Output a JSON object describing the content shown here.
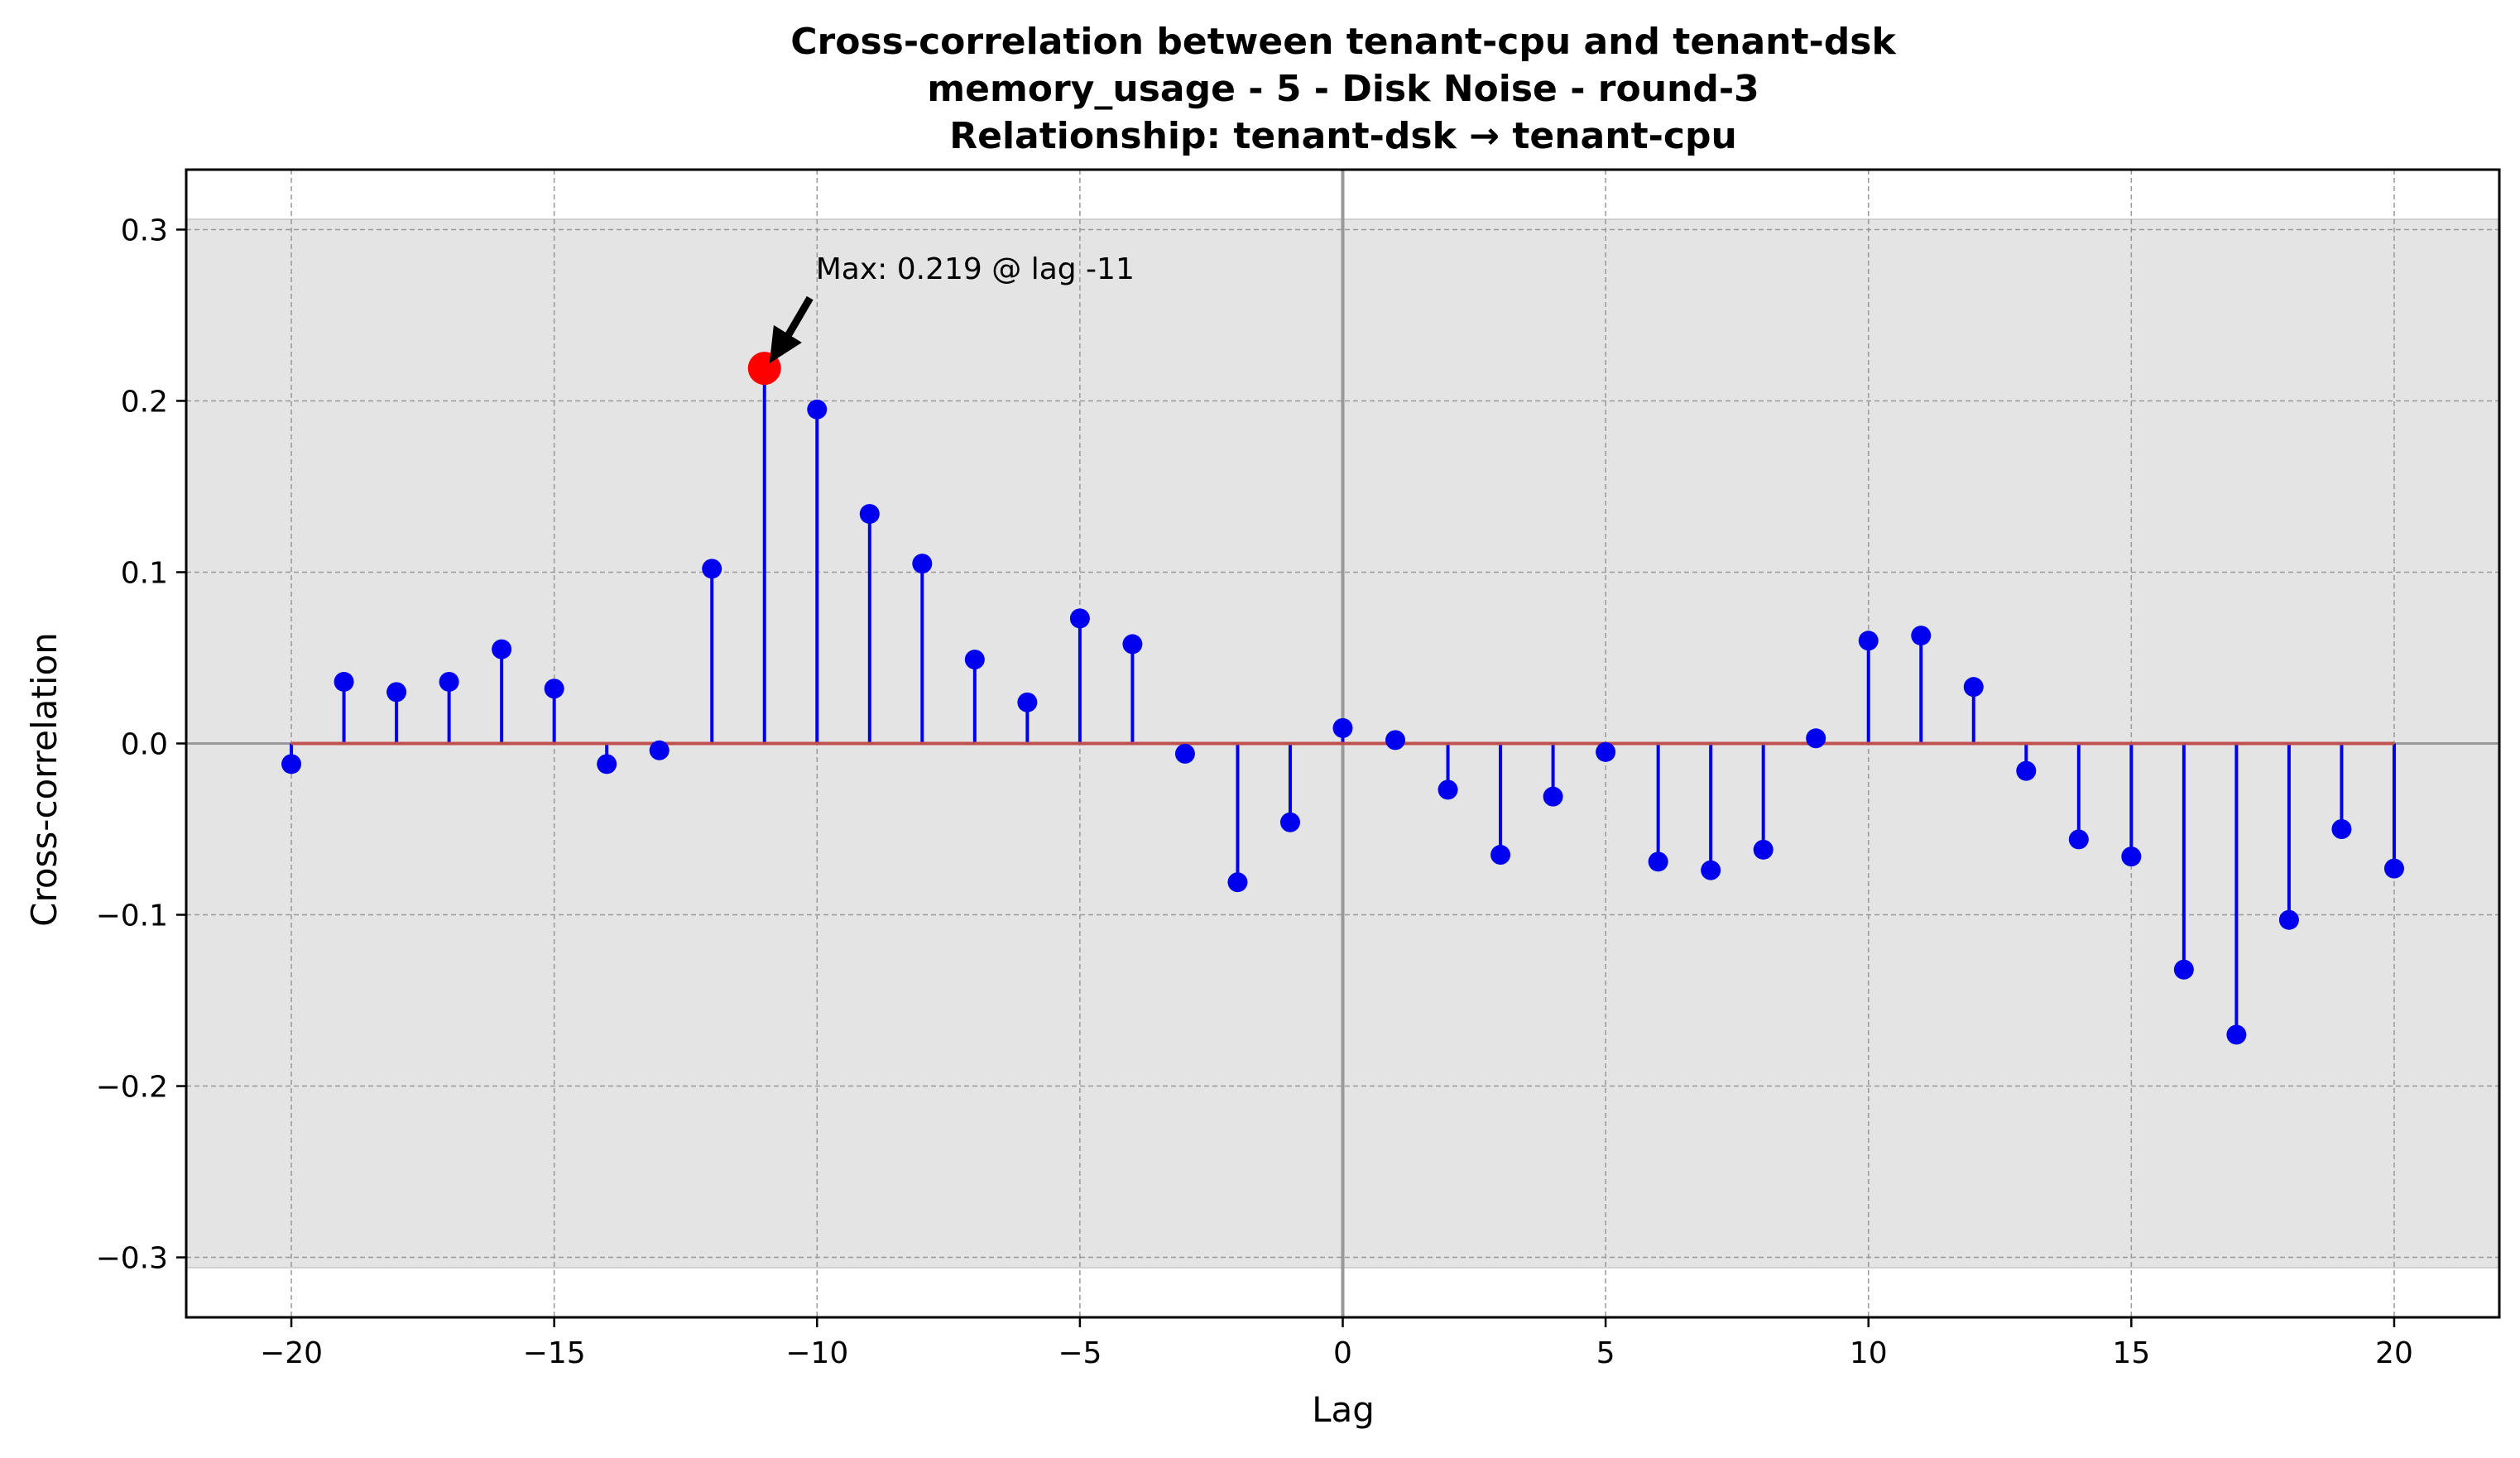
{
  "chart_data": {
    "type": "stem",
    "title_lines": [
      "Cross-correlation between tenant-cpu and tenant-dsk",
      "memory_usage - 5 - Disk Noise - round-3",
      "Relationship: tenant-dsk → tenant-cpu"
    ],
    "xlabel": "Lag",
    "ylabel": "Cross-correlation",
    "xlim": [
      -22,
      22
    ],
    "ylim": [
      -0.335,
      0.335
    ],
    "x_ticks": [
      -20,
      -15,
      -10,
      -5,
      0,
      5,
      10,
      15,
      20
    ],
    "x_tick_labels": [
      "−20",
      "−15",
      "−10",
      "−5",
      "0",
      "5",
      "10",
      "15",
      "20"
    ],
    "y_ticks": [
      -0.3,
      -0.2,
      -0.1,
      0.0,
      0.1,
      0.2,
      0.3
    ],
    "y_tick_labels": [
      "−0.3",
      "−0.2",
      "−0.1",
      "0.0",
      "0.1",
      "0.2",
      "0.3"
    ],
    "grid": true,
    "significance_band": [
      -0.306,
      0.306
    ],
    "x": [
      -20,
      -19,
      -18,
      -17,
      -16,
      -15,
      -14,
      -13,
      -12,
      -11,
      -10,
      -9,
      -8,
      -7,
      -6,
      -5,
      -4,
      -3,
      -2,
      -1,
      0,
      1,
      2,
      3,
      4,
      5,
      6,
      7,
      8,
      9,
      10,
      11,
      12,
      13,
      14,
      15,
      16,
      17,
      18,
      19,
      20
    ],
    "values": [
      -0.012,
      0.036,
      0.03,
      0.036,
      0.055,
      0.032,
      -0.012,
      -0.004,
      0.102,
      0.219,
      0.195,
      0.134,
      0.105,
      0.049,
      0.024,
      0.073,
      0.058,
      -0.006,
      -0.081,
      -0.046,
      0.009,
      0.002,
      -0.027,
      -0.065,
      -0.031,
      -0.005,
      -0.069,
      -0.074,
      -0.062,
      0.003,
      0.06,
      0.063,
      0.033,
      -0.016,
      -0.056,
      -0.066,
      -0.132,
      -0.17,
      -0.103,
      -0.05,
      -0.073
    ],
    "max_point": {
      "x": -11,
      "y": 0.219
    },
    "annotation": "Max: 0.219 @ lag -11",
    "colors": {
      "stem": "#0000ee",
      "marker": "#0000ee",
      "baseline": "#c0504d",
      "max_marker": "#ff0000",
      "band": "#e4e4e4",
      "grid": "#999999",
      "zero_line": "#999999"
    }
  }
}
